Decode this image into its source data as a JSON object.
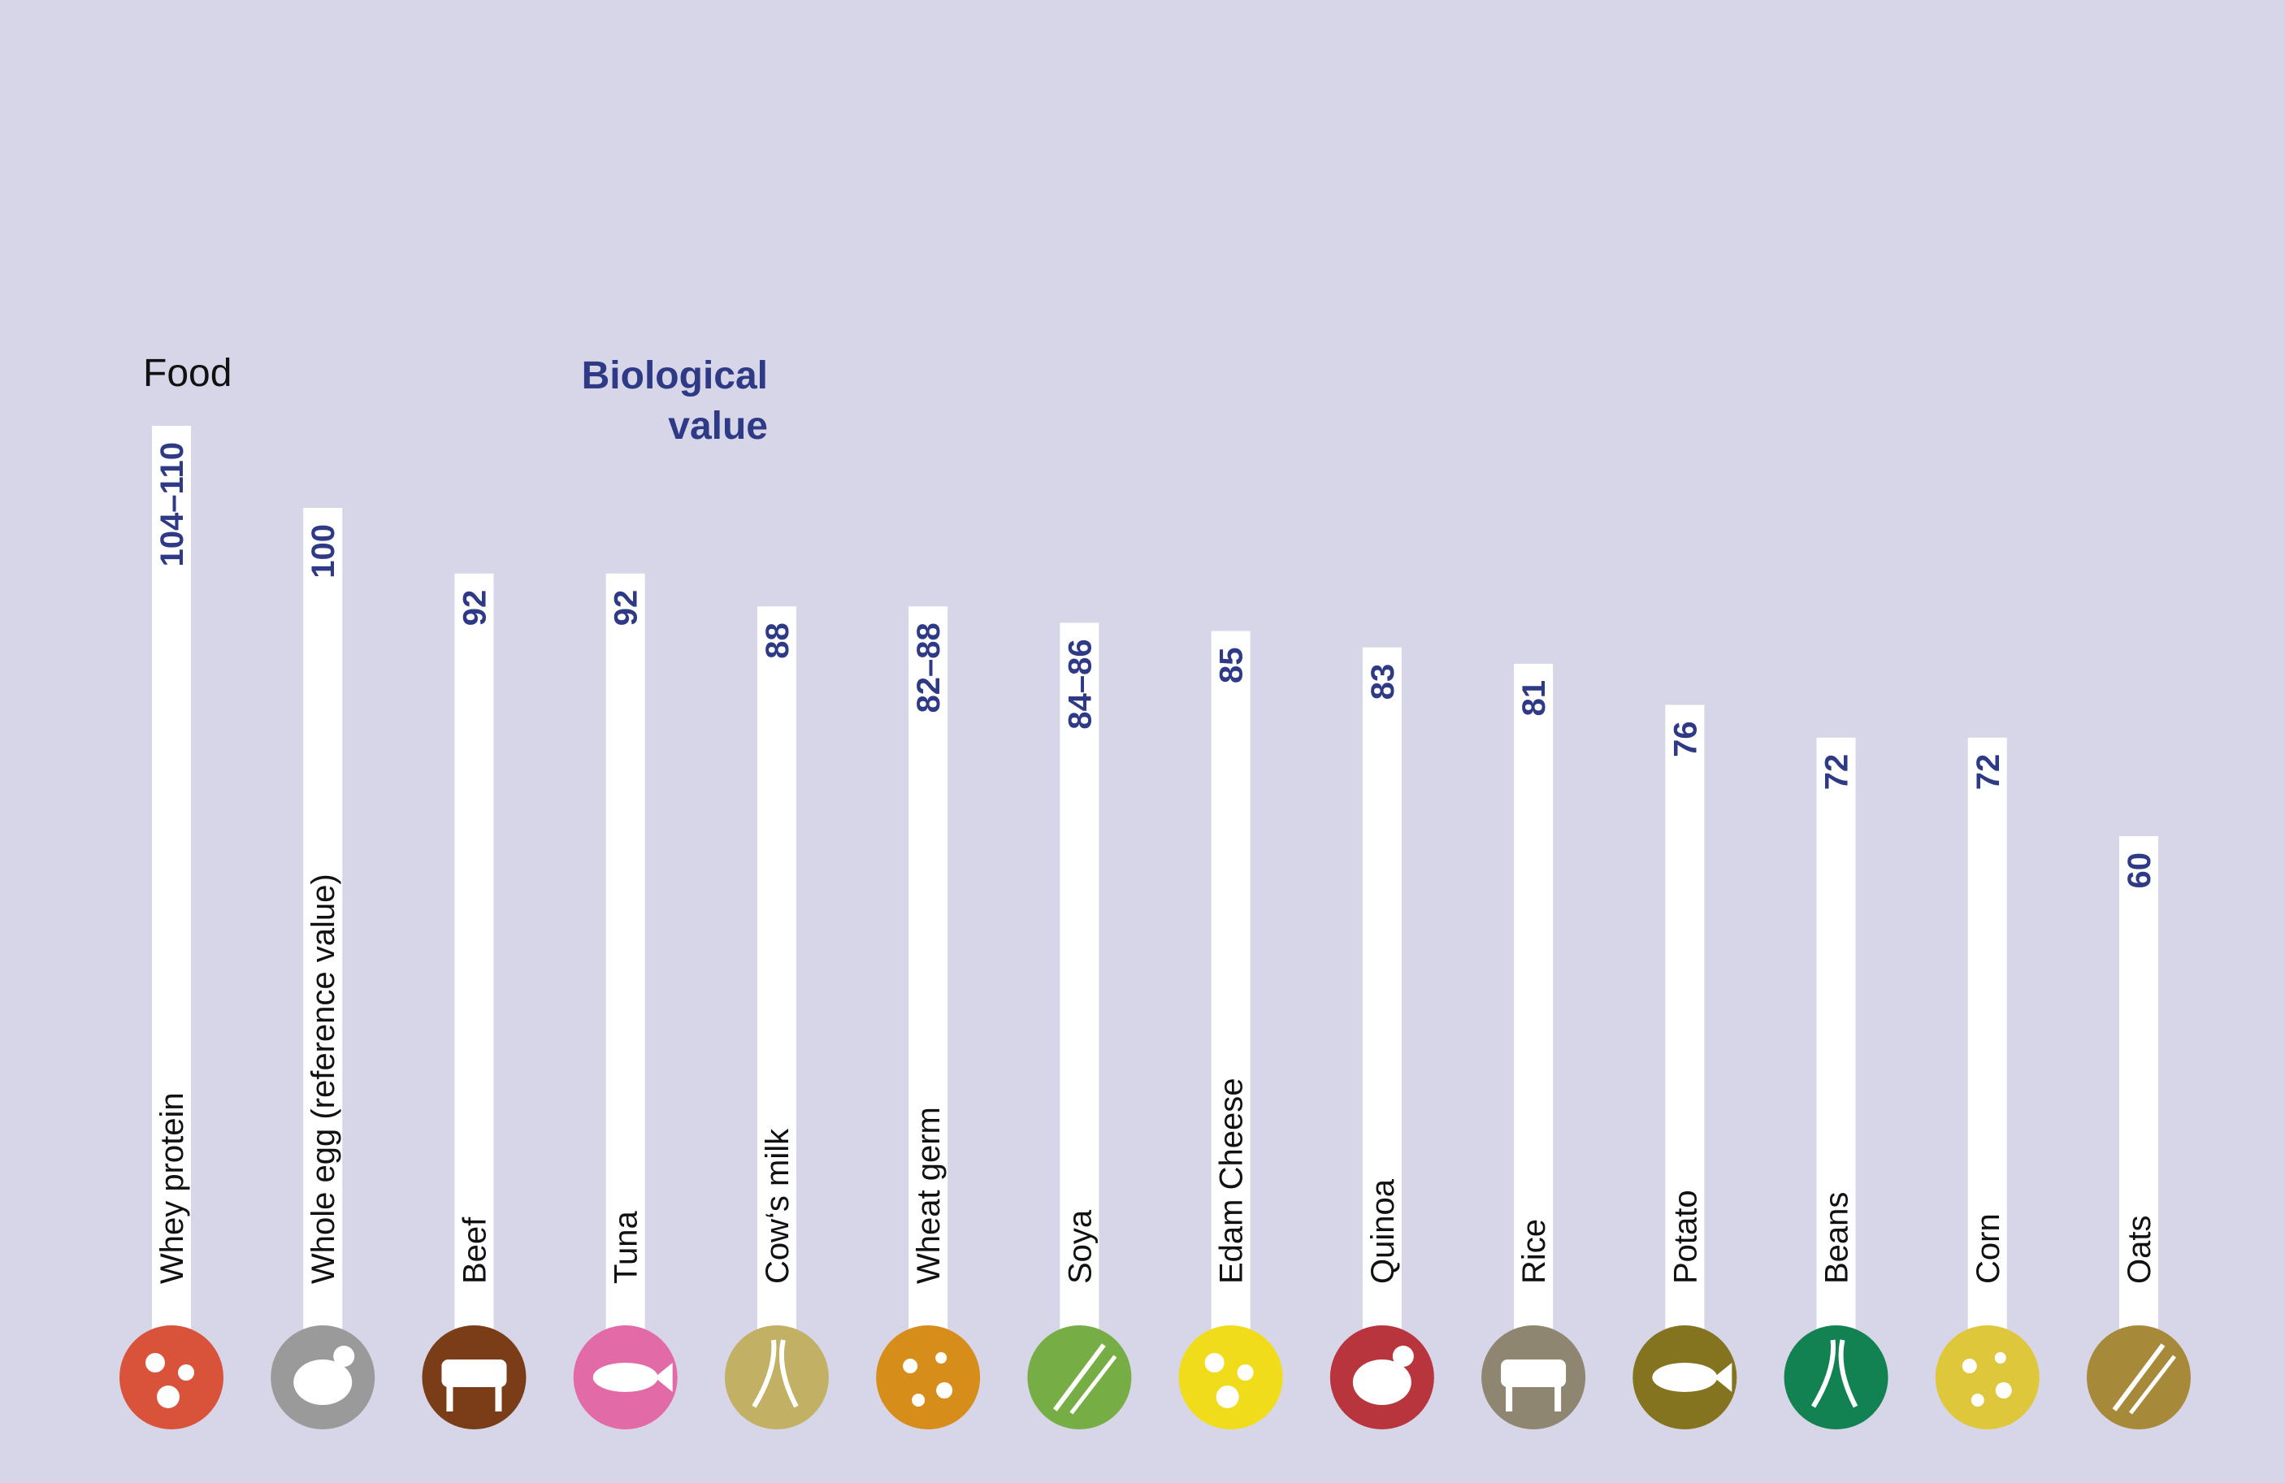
{
  "header": {
    "food_label": "Food",
    "value_label_line1": "Biological",
    "value_label_line2": "value"
  },
  "colors": {
    "background": "#d7d6e8",
    "bar": "#ffffff",
    "value_text": "#2f3a86",
    "label_text": "#111111"
  },
  "chart_data": {
    "type": "bar",
    "orientation": "vertical",
    "title": "",
    "xlabel": "Food",
    "ylabel": "Biological value",
    "ylim": [
      0,
      110
    ],
    "grid": false,
    "categories": [
      "Whey protein",
      "Whole egg (reference value)",
      "Beef",
      "Tuna",
      "Cow‘s milk",
      "Wheat germ",
      "Soya",
      "Edam Cheese",
      "Quinoa",
      "Rice",
      "Potato",
      "Beans",
      "Corn",
      "Oats"
    ],
    "values": [
      110,
      100,
      92,
      92,
      88,
      88,
      86,
      85,
      83,
      81,
      76,
      72,
      72,
      60
    ],
    "value_labels": [
      "104–110",
      "100",
      "92",
      "92",
      "88",
      "82–88",
      "84–86",
      "85",
      "83",
      "81",
      "76",
      "72",
      "72",
      "60"
    ],
    "icons": [
      {
        "name": "whey-protein-icon",
        "color": "#d9533a"
      },
      {
        "name": "egg-hen-icon",
        "color": "#9a9a9a"
      },
      {
        "name": "cow-icon",
        "color": "#7a3d18"
      },
      {
        "name": "tuna-fish-icon",
        "color": "#e26aa6"
      },
      {
        "name": "milk-cow-icon",
        "color": "#c2b065"
      },
      {
        "name": "wheat-icon",
        "color": "#d68d1a"
      },
      {
        "name": "soy-plant-icon",
        "color": "#77ad45"
      },
      {
        "name": "cheese-icon",
        "color": "#f0dc1a"
      },
      {
        "name": "quinoa-icon",
        "color": "#b8353d"
      },
      {
        "name": "rice-icon",
        "color": "#8f8671"
      },
      {
        "name": "potato-icon",
        "color": "#85741f"
      },
      {
        "name": "beans-icon",
        "color": "#138253"
      },
      {
        "name": "corn-icon",
        "color": "#dfc73c"
      },
      {
        "name": "oats-icon",
        "color": "#a7893a"
      }
    ]
  }
}
